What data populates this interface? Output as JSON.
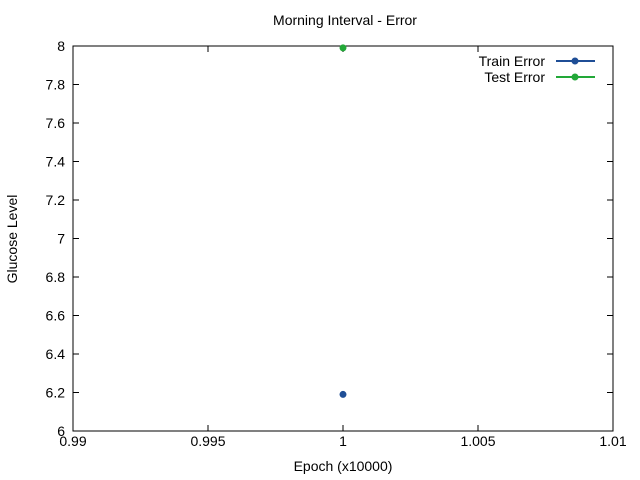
{
  "chart_data": {
    "type": "line",
    "title": "Morning Interval - Error",
    "xlabel": "Epoch (x10000)",
    "ylabel": "Glucose Level",
    "xlim": [
      0.99,
      1.01
    ],
    "ylim": [
      6,
      8
    ],
    "xticks": [
      0.99,
      0.995,
      1,
      1.005,
      1.01
    ],
    "xtick_labels": [
      "0.99",
      "0.995",
      "1",
      "1.005",
      "1.01"
    ],
    "yticks": [
      6,
      6.2,
      6.4,
      6.6,
      6.8,
      7,
      7.2,
      7.4,
      7.6,
      7.8,
      8
    ],
    "ytick_labels": [
      "6",
      "6.2",
      "6.4",
      "6.6",
      "6.8",
      "7",
      "7.2",
      "7.4",
      "7.6",
      "7.8",
      "8"
    ],
    "grid": false,
    "legend_position": "top-right",
    "series": [
      {
        "name": "Train Error",
        "color": "#1f4e96",
        "x": [
          1
        ],
        "y": [
          6.19
        ]
      },
      {
        "name": "Test Error",
        "color": "#22a838",
        "x": [
          1
        ],
        "y": [
          7.99
        ]
      }
    ]
  }
}
